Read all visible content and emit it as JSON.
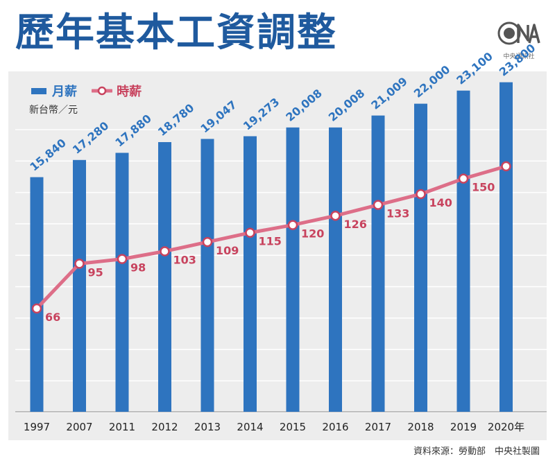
{
  "header": {
    "title": "歷年基本工資調整",
    "logo_text": "中央通訊社"
  },
  "legend": {
    "bar_label": "月薪",
    "line_label": "時薪"
  },
  "unit": "新台幣／元",
  "source": "資料來源：勞動部　中央社製圖",
  "colors": {
    "bar": "#2e74bf",
    "line": "#dd6e88",
    "line_label": "#c8435e",
    "title": "#1f5a9e",
    "panel": "#ededed"
  },
  "chart_data": {
    "type": "bar",
    "categories": [
      "1997",
      "2007",
      "2011",
      "2012",
      "2013",
      "2014",
      "2015",
      "2016",
      "2017",
      "2018",
      "2019",
      "2020年"
    ],
    "series": [
      {
        "name": "月薪",
        "type": "bar",
        "values": [
          15840,
          17280,
          17880,
          18780,
          19047,
          19273,
          20008,
          20008,
          21009,
          22000,
          23100,
          23800
        ],
        "labels": [
          "15,840",
          "17,280",
          "17,880",
          "18,780",
          "19,047",
          "19,273",
          "20,008",
          "20,008",
          "21,009",
          "22,000",
          "23,100",
          "23,800"
        ]
      },
      {
        "name": "時薪",
        "type": "line",
        "values": [
          66,
          95,
          98,
          103,
          109,
          115,
          120,
          126,
          133,
          140,
          150,
          158
        ],
        "labels": [
          "66",
          "95",
          "98",
          "103",
          "109",
          "115",
          "120",
          "126",
          "133",
          "140",
          "150",
          ""
        ]
      }
    ],
    "grid": true,
    "legend_position": "top-left"
  }
}
